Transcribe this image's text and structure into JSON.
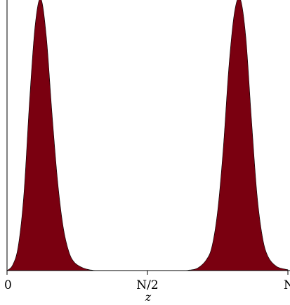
{
  "chart_data": {
    "type": "area",
    "title": "",
    "xlabel": "z",
    "ylabel": "",
    "xlim": [
      0,
      1
    ],
    "ylim": [
      0,
      1
    ],
    "xticks": [
      {
        "value": 0,
        "label": "0"
      },
      {
        "value": 0.5,
        "label": "N/2"
      },
      {
        "value": 1,
        "label": "N"
      }
    ],
    "grid": false,
    "legend": "none",
    "fill_color": "#7a0010",
    "axis_color": "#000000",
    "series": [
      {
        "values": [
          {
            "x": 0.0,
            "y": 0.0
          },
          {
            "x": 0.02,
            "y": 0.02
          },
          {
            "x": 0.04,
            "y": 0.09
          },
          {
            "x": 0.06,
            "y": 0.28
          },
          {
            "x": 0.08,
            "y": 0.62
          },
          {
            "x": 0.1,
            "y": 0.9
          },
          {
            "x": 0.12,
            "y": 1.0
          },
          {
            "x": 0.14,
            "y": 0.86
          },
          {
            "x": 0.16,
            "y": 0.58
          },
          {
            "x": 0.18,
            "y": 0.33
          },
          {
            "x": 0.2,
            "y": 0.16
          },
          {
            "x": 0.22,
            "y": 0.07
          },
          {
            "x": 0.24,
            "y": 0.03
          },
          {
            "x": 0.27,
            "y": 0.01
          },
          {
            "x": 0.3,
            "y": 0.002
          },
          {
            "x": 0.35,
            "y": 0.0
          },
          {
            "x": 0.6,
            "y": 0.0
          },
          {
            "x": 0.65,
            "y": 0.002
          },
          {
            "x": 0.68,
            "y": 0.01
          },
          {
            "x": 0.71,
            "y": 0.04
          },
          {
            "x": 0.73,
            "y": 0.09
          },
          {
            "x": 0.75,
            "y": 0.22
          },
          {
            "x": 0.77,
            "y": 0.45
          },
          {
            "x": 0.79,
            "y": 0.75
          },
          {
            "x": 0.81,
            "y": 0.95
          },
          {
            "x": 0.83,
            "y": 1.0
          },
          {
            "x": 0.85,
            "y": 0.86
          },
          {
            "x": 0.87,
            "y": 0.56
          },
          {
            "x": 0.89,
            "y": 0.28
          },
          {
            "x": 0.91,
            "y": 0.12
          },
          {
            "x": 0.93,
            "y": 0.05
          },
          {
            "x": 0.96,
            "y": 0.015
          },
          {
            "x": 1.0,
            "y": 0.003
          }
        ]
      }
    ]
  }
}
